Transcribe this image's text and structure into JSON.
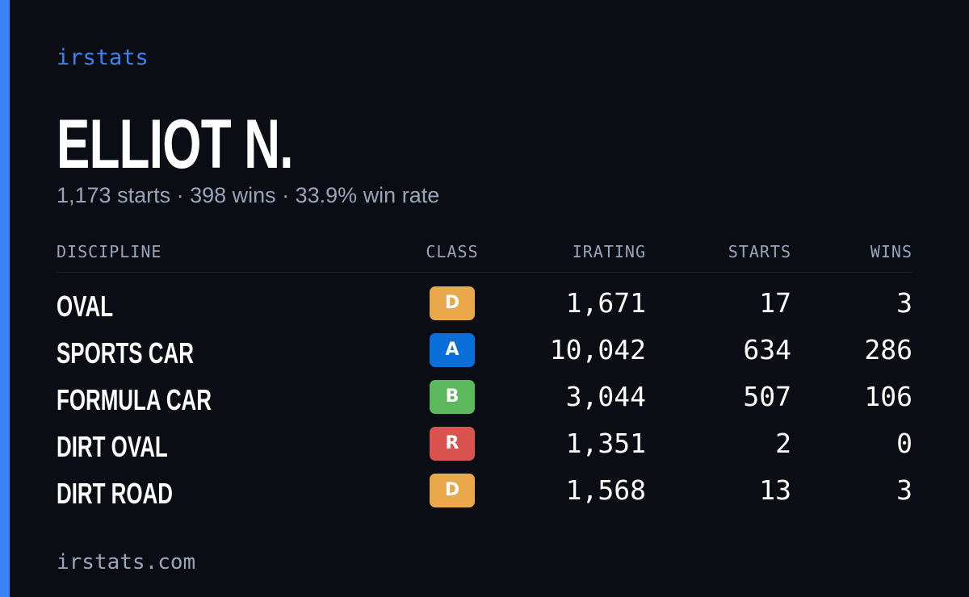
{
  "brand": "irstats",
  "profile": {
    "name": "ELLIOT N.",
    "summary": "1,173 starts · 398 wins · 33.9% win rate"
  },
  "table": {
    "columns": [
      "DISCIPLINE",
      "CLASS",
      "IRATING",
      "STARTS",
      "WINS"
    ],
    "rows": [
      [
        "OVAL",
        "D",
        "1,671",
        "17",
        "3"
      ],
      [
        "SPORTS CAR",
        "A",
        "10,042",
        "634",
        "286"
      ],
      [
        "FORMULA CAR",
        "B",
        "3,044",
        "507",
        "106"
      ],
      [
        "DIRT OVAL",
        "R",
        "1,351",
        "2",
        "0"
      ],
      [
        "DIRT ROAD",
        "D",
        "1,568",
        "13",
        "3"
      ]
    ]
  },
  "footer": "irstats.com"
}
